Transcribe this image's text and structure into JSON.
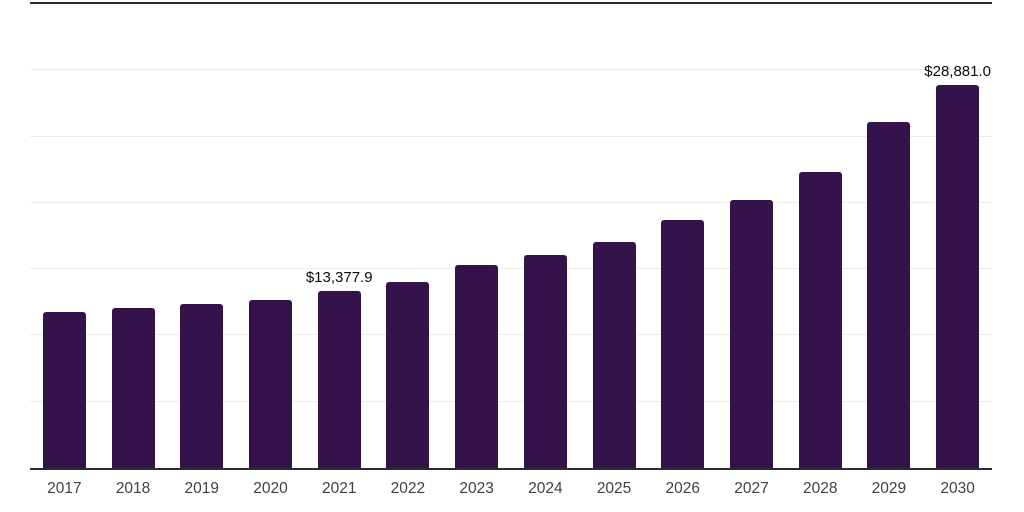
{
  "chart_data": {
    "type": "bar",
    "title": "",
    "xlabel": "",
    "ylabel": "",
    "categories": [
      "2017",
      "2018",
      "2019",
      "2020",
      "2021",
      "2022",
      "2023",
      "2024",
      "2025",
      "2026",
      "2027",
      "2028",
      "2029",
      "2030"
    ],
    "values": [
      11800,
      12060,
      12400,
      12650,
      13377.9,
      14020,
      15320,
      16100,
      17080,
      18680,
      20250,
      22350,
      26120,
      28881.0
    ],
    "data_labels": [
      {
        "category": "2021",
        "text": "$13,377.9"
      },
      {
        "category": "2030",
        "text": "$28,881.0"
      }
    ],
    "ylim": [
      0,
      35000
    ],
    "gridline_interval": 5000,
    "grid": true,
    "legend": false,
    "colors": {
      "bar": "#331349",
      "axis_line": "#2b2b2b",
      "gridline": "#ececec",
      "x_tick_text": "#404040",
      "value_label_text": "#0d0d0d",
      "background": "#ffffff"
    }
  }
}
